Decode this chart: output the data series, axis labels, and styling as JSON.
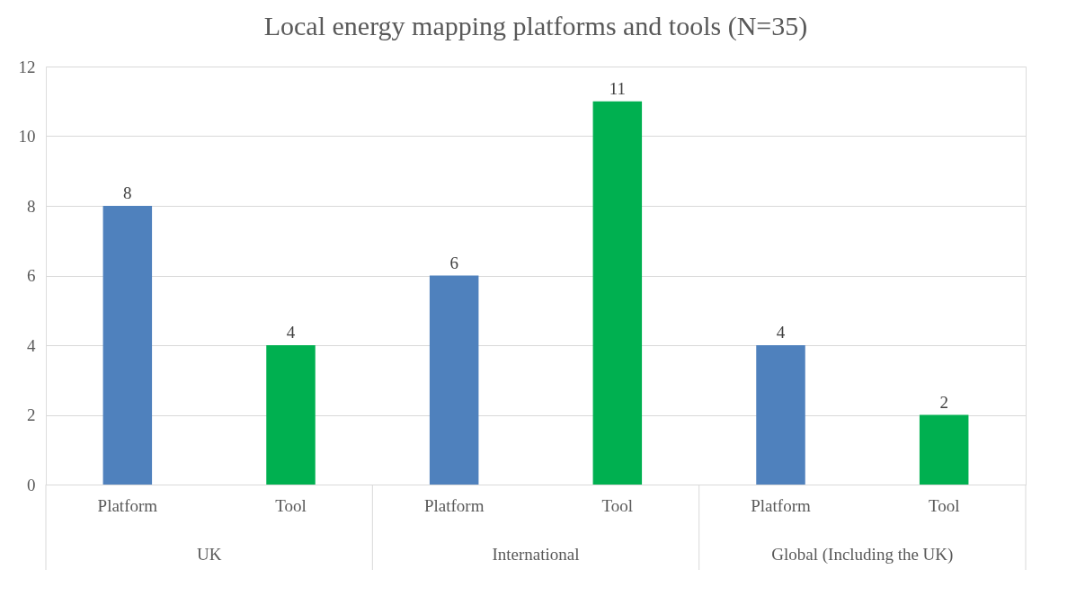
{
  "chart_data": {
    "type": "bar",
    "title": "Local energy mapping platforms and tools (N=35)",
    "categories": [
      "Platform",
      "Tool",
      "Platform",
      "Tool",
      "Platform",
      "Tool"
    ],
    "values": [
      8,
      4,
      6,
      11,
      4,
      2
    ],
    "colors": [
      "#4f81bd",
      "#00b050",
      "#4f81bd",
      "#00b050",
      "#4f81bd",
      "#00b050"
    ],
    "annotations": [
      "UK",
      "International",
      "Global (Including the UK)"
    ],
    "ylim": [
      0,
      12
    ],
    "yticks": [
      0,
      2,
      4,
      6,
      8,
      10,
      12
    ],
    "grid": "y",
    "data_labels": true
  }
}
